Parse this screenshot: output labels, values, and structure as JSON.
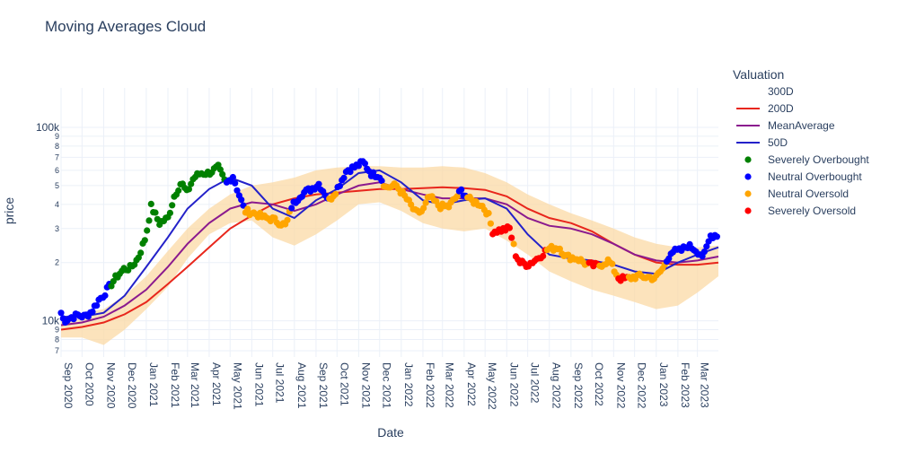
{
  "chart_data": {
    "type": "line",
    "title": "Moving Averages Cloud",
    "xlabel": "Date",
    "ylabel": "price",
    "y_scale": "log",
    "xlim": [
      "2020-09-01",
      "2023-03-31"
    ],
    "ylim": [
      6500,
      160000
    ],
    "grid": true,
    "legend_position": "right",
    "legend_title": "Valuation",
    "x_tick_labels": [
      "Sep 2020",
      "Oct 2020",
      "Nov 2020",
      "Dec 2020",
      "Jan 2021",
      "Feb 2021",
      "Mar 2021",
      "Apr 2021",
      "May 2021",
      "Jun 2021",
      "Jul 2021",
      "Aug 2021",
      "Sep 2021",
      "Oct 2021",
      "Nov 2021",
      "Dec 2021",
      "Jan 2022",
      "Feb 2022",
      "Mar 2022",
      "Apr 2022",
      "May 2022",
      "Jun 2022",
      "Jul 2022",
      "Aug 2022",
      "Sep 2022",
      "Oct 2022",
      "Nov 2022",
      "Dec 2022",
      "Jan 2023",
      "Feb 2023",
      "Mar 2023"
    ],
    "x_tick_dates": [
      "2020-09-01",
      "2020-10-01",
      "2020-11-01",
      "2020-12-01",
      "2021-01-01",
      "2021-02-01",
      "2021-03-01",
      "2021-04-01",
      "2021-05-01",
      "2021-06-01",
      "2021-07-01",
      "2021-08-01",
      "2021-09-01",
      "2021-10-01",
      "2021-11-01",
      "2021-12-01",
      "2022-01-01",
      "2022-02-01",
      "2022-03-01",
      "2022-04-01",
      "2022-05-01",
      "2022-06-01",
      "2022-07-01",
      "2022-08-01",
      "2022-09-01",
      "2022-10-01",
      "2022-11-01",
      "2022-12-01",
      "2023-01-01",
      "2023-02-01",
      "2023-03-01"
    ],
    "y_major_ticks": [
      {
        "value": 10000,
        "label": "10k"
      },
      {
        "value": 100000,
        "label": "100k"
      }
    ],
    "y_minor_ticks": [
      {
        "value": 7000,
        "label": "7"
      },
      {
        "value": 8000,
        "label": "8"
      },
      {
        "value": 9000,
        "label": "9"
      },
      {
        "value": 20000,
        "label": "2"
      },
      {
        "value": 30000,
        "label": "3"
      },
      {
        "value": 40000,
        "label": "4"
      },
      {
        "value": 50000,
        "label": "5"
      },
      {
        "value": 60000,
        "label": "6"
      },
      {
        "value": 70000,
        "label": "7"
      },
      {
        "value": 80000,
        "label": "8"
      },
      {
        "value": 90000,
        "label": "9"
      }
    ],
    "series": [
      {
        "name": "300D",
        "kind": "band",
        "color": "#fbd9a6",
        "x": [
          "2020-09-01",
          "2020-10-01",
          "2020-11-01",
          "2020-12-01",
          "2021-01-01",
          "2021-02-01",
          "2021-03-01",
          "2021-04-01",
          "2021-05-01",
          "2021-06-01",
          "2021-07-01",
          "2021-08-01",
          "2021-09-01",
          "2021-10-01",
          "2021-11-01",
          "2021-12-01",
          "2022-01-01",
          "2022-02-01",
          "2022-03-01",
          "2022-04-01",
          "2022-05-01",
          "2022-06-01",
          "2022-07-01",
          "2022-08-01",
          "2022-09-01",
          "2022-10-01",
          "2022-11-01",
          "2022-12-01",
          "2023-01-01",
          "2023-02-01",
          "2023-03-01",
          "2023-03-31"
        ],
        "upper": [
          10500,
          11000,
          11500,
          13500,
          17000,
          23000,
          30000,
          38000,
          45000,
          50000,
          52000,
          55000,
          60000,
          62000,
          63000,
          63000,
          62000,
          62000,
          63000,
          62000,
          58000,
          52000,
          45000,
          40000,
          36000,
          33000,
          30000,
          27000,
          25000,
          24000,
          24000,
          24500
        ],
        "lower": [
          8200,
          8200,
          7500,
          9000,
          11500,
          15000,
          21000,
          28000,
          32000,
          33000,
          27000,
          24500,
          28000,
          33000,
          40000,
          41000,
          37000,
          32000,
          30000,
          29000,
          30000,
          26000,
          22000,
          18000,
          16000,
          14500,
          13500,
          12500,
          11500,
          12000,
          14000,
          17000
        ]
      },
      {
        "name": "200D",
        "kind": "line",
        "color": "#e8261c",
        "x": [
          "2020-09-01",
          "2020-10-01",
          "2020-11-01",
          "2020-12-01",
          "2021-01-01",
          "2021-02-01",
          "2021-03-01",
          "2021-04-01",
          "2021-05-01",
          "2021-06-01",
          "2021-07-01",
          "2021-08-01",
          "2021-09-01",
          "2021-10-01",
          "2021-11-01",
          "2021-12-01",
          "2022-01-01",
          "2022-02-01",
          "2022-03-01",
          "2022-04-01",
          "2022-05-01",
          "2022-06-01",
          "2022-07-01",
          "2022-08-01",
          "2022-09-01",
          "2022-10-01",
          "2022-11-01",
          "2022-12-01",
          "2023-01-01",
          "2023-02-01",
          "2023-03-01",
          "2023-03-31"
        ],
        "y": [
          9000,
          9300,
          9800,
          10800,
          12500,
          15500,
          19000,
          24000,
          30000,
          35000,
          40000,
          43000,
          45000,
          46000,
          47000,
          48000,
          48000,
          48500,
          49000,
          48500,
          47500,
          44000,
          38000,
          34000,
          32000,
          29000,
          25000,
          22000,
          20000,
          19500,
          19500,
          20000
        ]
      },
      {
        "name": "MeanAverage",
        "kind": "line",
        "color": "#8b1a8e",
        "x": [
          "2020-09-01",
          "2020-10-01",
          "2020-11-01",
          "2020-12-01",
          "2021-01-01",
          "2021-02-01",
          "2021-03-01",
          "2021-04-01",
          "2021-05-01",
          "2021-06-01",
          "2021-07-01",
          "2021-08-01",
          "2021-09-01",
          "2021-10-01",
          "2021-11-01",
          "2021-12-01",
          "2022-01-01",
          "2022-02-01",
          "2022-03-01",
          "2022-04-01",
          "2022-05-01",
          "2022-06-01",
          "2022-07-01",
          "2022-08-01",
          "2022-09-01",
          "2022-10-01",
          "2022-11-01",
          "2022-12-01",
          "2023-01-01",
          "2023-02-01",
          "2023-03-01",
          "2023-03-31"
        ],
        "y": [
          9500,
          9800,
          10500,
          12000,
          14500,
          19000,
          25000,
          32000,
          38000,
          41000,
          40000,
          37000,
          40000,
          45000,
          50000,
          52000,
          48000,
          45000,
          43000,
          43000,
          43000,
          40000,
          34000,
          31000,
          30000,
          28000,
          25000,
          22000,
          20500,
          20000,
          20500,
          21500
        ]
      },
      {
        "name": "50D",
        "kind": "line",
        "color": "#2321c9",
        "x": [
          "2020-09-01",
          "2020-10-01",
          "2020-11-01",
          "2020-12-01",
          "2021-01-01",
          "2021-02-01",
          "2021-03-01",
          "2021-04-01",
          "2021-05-01",
          "2021-06-01",
          "2021-07-01",
          "2021-08-01",
          "2021-09-01",
          "2021-10-01",
          "2021-11-01",
          "2021-12-01",
          "2022-01-01",
          "2022-02-01",
          "2022-03-01",
          "2022-04-01",
          "2022-05-01",
          "2022-06-01",
          "2022-07-01",
          "2022-08-01",
          "2022-09-01",
          "2022-10-01",
          "2022-11-01",
          "2022-12-01",
          "2023-01-01",
          "2023-02-01",
          "2023-03-01",
          "2023-03-31"
        ],
        "y": [
          10500,
          10500,
          11000,
          13500,
          19000,
          27000,
          38000,
          48000,
          55000,
          50000,
          38000,
          34000,
          42000,
          48000,
          58000,
          60000,
          52000,
          42000,
          40000,
          42000,
          43000,
          38000,
          28000,
          22000,
          21000,
          20500,
          19500,
          18000,
          17500,
          20000,
          22000,
          24000
        ]
      }
    ],
    "scatter_series": [
      {
        "name": "Severely Overbought",
        "color": "#008000"
      },
      {
        "name": "Neutral Overbought",
        "color": "#0000ff"
      },
      {
        "name": "Neutral Oversold",
        "color": "#ffa500"
      },
      {
        "name": "Severely Oversold",
        "color": "#ff0000"
      }
    ],
    "price_path": [
      [
        "2020-09-01",
        11000
      ],
      [
        "2020-09-05",
        10000
      ],
      [
        "2020-09-15",
        10400
      ],
      [
        "2020-09-25",
        10700
      ],
      [
        "2020-10-05",
        10500
      ],
      [
        "2020-10-15",
        11200
      ],
      [
        "2020-10-25",
        12800
      ],
      [
        "2020-11-01",
        13600
      ],
      [
        "2020-11-10",
        15200
      ],
      [
        "2020-11-20",
        17000
      ],
      [
        "2020-11-30",
        18500
      ],
      [
        "2020-12-10",
        18800
      ],
      [
        "2020-12-20",
        21000
      ],
      [
        "2020-12-31",
        27000
      ],
      [
        "2021-01-08",
        39000
      ],
      [
        "2021-01-20",
        32000
      ],
      [
        "2021-02-01",
        34000
      ],
      [
        "2021-02-10",
        44000
      ],
      [
        "2021-02-20",
        52000
      ],
      [
        "2021-02-28",
        46000
      ],
      [
        "2021-03-10",
        55000
      ],
      [
        "2021-03-20",
        58000
      ],
      [
        "2021-03-31",
        58000
      ],
      [
        "2021-04-14",
        62000
      ],
      [
        "2021-04-25",
        51000
      ],
      [
        "2021-05-05",
        56000
      ],
      [
        "2021-05-12",
        47000
      ],
      [
        "2021-05-22",
        37000
      ],
      [
        "2021-06-05",
        36000
      ],
      [
        "2021-06-20",
        34000
      ],
      [
        "2021-07-01",
        33500
      ],
      [
        "2021-07-20",
        31000
      ],
      [
        "2021-07-28",
        39000
      ],
      [
        "2021-08-10",
        45000
      ],
      [
        "2021-08-25",
        48000
      ],
      [
        "2021-09-05",
        51000
      ],
      [
        "2021-09-20",
        42000
      ],
      [
        "2021-10-01",
        48000
      ],
      [
        "2021-10-15",
        60000
      ],
      [
        "2021-10-25",
        62000
      ],
      [
        "2021-11-08",
        66000
      ],
      [
        "2021-11-20",
        57000
      ],
      [
        "2021-11-30",
        57000
      ],
      [
        "2021-12-10",
        49000
      ],
      [
        "2021-12-25",
        50000
      ],
      [
        "2022-01-10",
        42000
      ],
      [
        "2022-01-22",
        36000
      ],
      [
        "2022-02-01",
        37000
      ],
      [
        "2022-02-10",
        44000
      ],
      [
        "2022-02-25",
        39000
      ],
      [
        "2022-03-10",
        39000
      ],
      [
        "2022-03-28",
        47000
      ],
      [
        "2022-04-10",
        42000
      ],
      [
        "2022-04-25",
        40000
      ],
      [
        "2022-05-05",
        36000
      ],
      [
        "2022-05-12",
        29000
      ],
      [
        "2022-05-25",
        29500
      ],
      [
        "2022-06-05",
        30000
      ],
      [
        "2022-06-14",
        22000
      ],
      [
        "2022-06-20",
        20000
      ],
      [
        "2022-07-01",
        19500
      ],
      [
        "2022-07-15",
        21000
      ],
      [
        "2022-07-30",
        23500
      ],
      [
        "2022-08-15",
        24000
      ],
      [
        "2022-08-25",
        21500
      ],
      [
        "2022-09-10",
        21000
      ],
      [
        "2022-09-25",
        19500
      ],
      [
        "2022-10-10",
        19200
      ],
      [
        "2022-10-25",
        20500
      ],
      [
        "2022-11-09",
        16500
      ],
      [
        "2022-11-20",
        16500
      ],
      [
        "2022-12-05",
        17000
      ],
      [
        "2022-12-20",
        16800
      ],
      [
        "2022-12-31",
        16600
      ],
      [
        "2023-01-12",
        19000
      ],
      [
        "2023-01-22",
        22800
      ],
      [
        "2023-02-05",
        23000
      ],
      [
        "2023-02-15",
        24500
      ],
      [
        "2023-02-25",
        23500
      ],
      [
        "2023-03-10",
        21500
      ],
      [
        "2023-03-20",
        27500
      ],
      [
        "2023-03-31",
        28000
      ]
    ],
    "valuation_segments": [
      [
        "2020-09-01",
        "2020-11-10",
        "Neutral Overbought"
      ],
      [
        "2020-11-10",
        "2021-04-25",
        "Severely Overbought"
      ],
      [
        "2021-04-25",
        "2021-05-22",
        "Neutral Overbought"
      ],
      [
        "2021-05-22",
        "2021-07-28",
        "Neutral Oversold"
      ],
      [
        "2021-07-28",
        "2021-09-20",
        "Neutral Overbought"
      ],
      [
        "2021-09-20",
        "2021-10-01",
        "Neutral Oversold"
      ],
      [
        "2021-10-01",
        "2021-12-05",
        "Neutral Overbought"
      ],
      [
        "2021-12-05",
        "2022-03-25",
        "Neutral Oversold"
      ],
      [
        "2022-03-25",
        "2022-04-05",
        "Neutral Overbought"
      ],
      [
        "2022-04-05",
        "2022-05-10",
        "Neutral Oversold"
      ],
      [
        "2022-05-10",
        "2022-06-10",
        "Severely Oversold"
      ],
      [
        "2022-06-10",
        "2022-06-14",
        "Neutral Oversold"
      ],
      [
        "2022-06-14",
        "2022-07-28",
        "Severely Oversold"
      ],
      [
        "2022-07-28",
        "2022-09-25",
        "Neutral Oversold"
      ],
      [
        "2022-09-25",
        "2022-10-10",
        "Severely Oversold"
      ],
      [
        "2022-10-10",
        "2022-11-08",
        "Neutral Oversold"
      ],
      [
        "2022-11-08",
        "2022-11-22",
        "Severely Oversold"
      ],
      [
        "2022-11-22",
        "2023-01-15",
        "Neutral Oversold"
      ],
      [
        "2023-01-15",
        "2023-03-31",
        "Neutral Overbought"
      ]
    ]
  }
}
